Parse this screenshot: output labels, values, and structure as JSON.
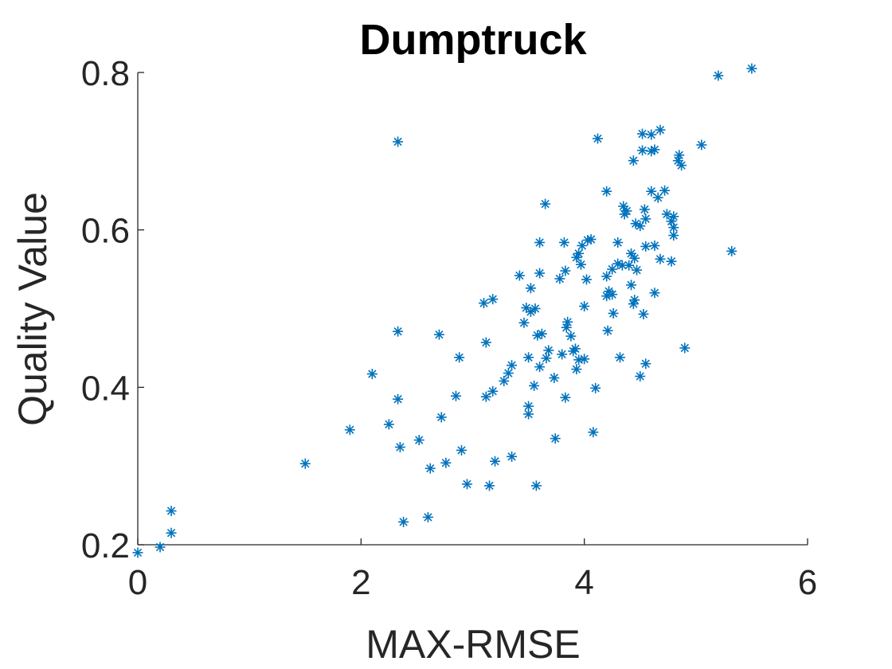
{
  "chart_data": {
    "type": "scatter",
    "title": "Dumptruck",
    "xlabel": "MAX-RMSE",
    "ylabel": "Quality Value",
    "xlim": [
      0,
      6
    ],
    "ylim": [
      0.2,
      0.8
    ],
    "xticks": [
      0,
      2,
      4,
      6
    ],
    "xtick_labels": [
      "0",
      "2",
      "4",
      "6"
    ],
    "yticks": [
      0.2,
      0.4,
      0.6,
      0.8
    ],
    "ytick_labels": [
      "0.2",
      "0.4",
      "0.6",
      "0.8"
    ],
    "marker": "asterisk",
    "marker_color": "#0072BD",
    "grid": false,
    "points": [
      [
        0.0,
        0.19
      ],
      [
        0.2,
        0.197
      ],
      [
        0.3,
        0.215
      ],
      [
        0.3,
        0.243
      ],
      [
        1.5,
        0.303
      ],
      [
        1.9,
        0.346
      ],
      [
        2.1,
        0.417
      ],
      [
        2.25,
        0.353
      ],
      [
        2.33,
        0.712
      ],
      [
        2.33,
        0.471
      ],
      [
        2.33,
        0.385
      ],
      [
        2.35,
        0.324
      ],
      [
        2.38,
        0.229
      ],
      [
        2.52,
        0.333
      ],
      [
        2.6,
        0.235
      ],
      [
        2.62,
        0.297
      ],
      [
        2.7,
        0.467
      ],
      [
        2.72,
        0.362
      ],
      [
        2.76,
        0.304
      ],
      [
        2.85,
        0.389
      ],
      [
        2.88,
        0.438
      ],
      [
        2.9,
        0.32
      ],
      [
        2.95,
        0.277
      ],
      [
        3.1,
        0.507
      ],
      [
        3.12,
        0.457
      ],
      [
        3.12,
        0.388
      ],
      [
        3.15,
        0.275
      ],
      [
        3.18,
        0.512
      ],
      [
        3.18,
        0.395
      ],
      [
        3.2,
        0.306
      ],
      [
        3.28,
        0.408
      ],
      [
        3.32,
        0.418
      ],
      [
        3.35,
        0.428
      ],
      [
        3.35,
        0.312
      ],
      [
        3.42,
        0.542
      ],
      [
        3.46,
        0.482
      ],
      [
        3.48,
        0.501
      ],
      [
        3.5,
        0.366
      ],
      [
        3.5,
        0.376
      ],
      [
        3.5,
        0.438
      ],
      [
        3.52,
        0.526
      ],
      [
        3.52,
        0.496
      ],
      [
        3.55,
        0.402
      ],
      [
        3.56,
        0.5
      ],
      [
        3.57,
        0.275
      ],
      [
        3.58,
        0.466
      ],
      [
        3.6,
        0.545
      ],
      [
        3.6,
        0.426
      ],
      [
        3.6,
        0.584
      ],
      [
        3.62,
        0.468
      ],
      [
        3.65,
        0.633
      ],
      [
        3.66,
        0.437
      ],
      [
        3.68,
        0.447
      ],
      [
        3.73,
        0.412
      ],
      [
        3.74,
        0.335
      ],
      [
        3.78,
        0.538
      ],
      [
        3.8,
        0.442
      ],
      [
        3.82,
        0.584
      ],
      [
        3.83,
        0.548
      ],
      [
        3.83,
        0.387
      ],
      [
        3.84,
        0.476
      ],
      [
        3.85,
        0.483
      ],
      [
        3.88,
        0.465
      ],
      [
        3.9,
        0.446
      ],
      [
        3.92,
        0.449
      ],
      [
        3.93,
        0.565
      ],
      [
        3.93,
        0.423
      ],
      [
        3.95,
        0.57
      ],
      [
        3.95,
        0.435
      ],
      [
        3.97,
        0.556
      ],
      [
        3.98,
        0.58
      ],
      [
        4.0,
        0.503
      ],
      [
        4.0,
        0.436
      ],
      [
        4.02,
        0.537
      ],
      [
        4.03,
        0.587
      ],
      [
        4.06,
        0.588
      ],
      [
        4.08,
        0.343
      ],
      [
        4.1,
        0.399
      ],
      [
        4.12,
        0.716
      ],
      [
        4.2,
        0.649
      ],
      [
        4.2,
        0.541
      ],
      [
        4.2,
        0.516
      ],
      [
        4.21,
        0.472
      ],
      [
        4.22,
        0.522
      ],
      [
        4.25,
        0.55
      ],
      [
        4.25,
        0.518
      ],
      [
        4.26,
        0.494
      ],
      [
        4.3,
        0.584
      ],
      [
        4.3,
        0.557
      ],
      [
        4.32,
        0.438
      ],
      [
        4.34,
        0.555
      ],
      [
        4.35,
        0.63
      ],
      [
        4.36,
        0.62
      ],
      [
        4.38,
        0.624
      ],
      [
        4.4,
        0.555
      ],
      [
        4.42,
        0.53
      ],
      [
        4.42,
        0.57
      ],
      [
        4.44,
        0.506
      ],
      [
        4.44,
        0.688
      ],
      [
        4.45,
        0.564
      ],
      [
        4.45,
        0.511
      ],
      [
        4.46,
        0.608
      ],
      [
        4.47,
        0.549
      ],
      [
        4.5,
        0.605
      ],
      [
        4.5,
        0.414
      ],
      [
        4.52,
        0.722
      ],
      [
        4.52,
        0.701
      ],
      [
        4.53,
        0.493
      ],
      [
        4.54,
        0.626
      ],
      [
        4.55,
        0.614
      ],
      [
        4.55,
        0.579
      ],
      [
        4.55,
        0.43
      ],
      [
        4.6,
        0.721
      ],
      [
        4.6,
        0.7
      ],
      [
        4.6,
        0.649
      ],
      [
        4.63,
        0.702
      ],
      [
        4.63,
        0.58
      ],
      [
        4.63,
        0.52
      ],
      [
        4.66,
        0.641
      ],
      [
        4.68,
        0.727
      ],
      [
        4.68,
        0.563
      ],
      [
        4.72,
        0.65
      ],
      [
        4.74,
        0.62
      ],
      [
        4.78,
        0.56
      ],
      [
        4.78,
        0.611
      ],
      [
        4.8,
        0.617
      ],
      [
        4.8,
        0.603
      ],
      [
        4.8,
        0.593
      ],
      [
        4.84,
        0.688
      ],
      [
        4.85,
        0.695
      ],
      [
        4.87,
        0.682
      ],
      [
        4.9,
        0.45
      ],
      [
        5.05,
        0.708
      ],
      [
        5.2,
        0.796
      ],
      [
        5.32,
        0.573
      ],
      [
        5.5,
        0.805
      ]
    ]
  }
}
